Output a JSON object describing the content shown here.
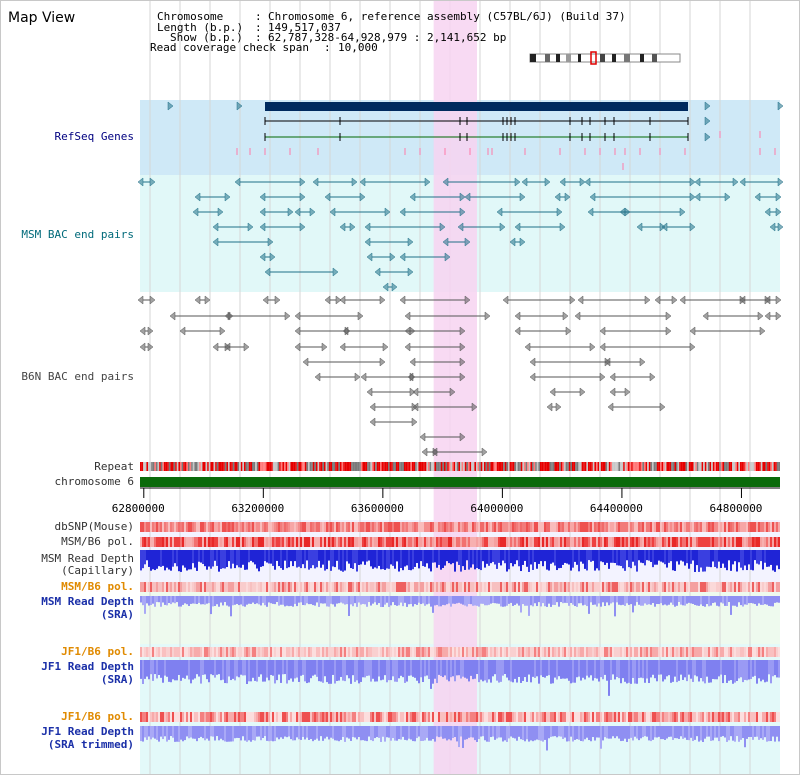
{
  "window": {
    "title": "Map View"
  },
  "info": {
    "chromosome_label": "Chromosome",
    "chromosome_value": "Chromosome 6, reference assembly (C57BL/6J) (Build 37)",
    "length_label": "Length (b.p.)",
    "length_value": "149,517,037",
    "show_label": "Show (b.p.)",
    "show_value": "62,787,328-64,928,979 : 2,141,652 bp",
    "coverage_label": "Read coverage check span",
    "coverage_value": "10,000"
  },
  "tracks": {
    "refseq": "RefSeq Genes",
    "msm_bac": "MSM BAC end pairs",
    "b6n_bac": "B6N BAC end pairs",
    "repeat": "Repeat",
    "chromosome": "chromosome 6",
    "dbsnp": "dbSNP(Mouse)",
    "msm_b6_pol_1": "MSM/B6 pol.",
    "msm_depth_cap_1": "MSM Read Depth",
    "msm_depth_cap_2": "(Capillary)",
    "msm_b6_pol_2": "MSM/B6 pol.",
    "msm_depth_sra_1": "MSM Read Depth",
    "msm_depth_sra_2": "(SRA)",
    "jf1_b6_pol_1": "JF1/B6 pol.",
    "jf1_depth_sra_1": "JF1 Read Depth",
    "jf1_depth_sra_2": "(SRA)",
    "jf1_b6_pol_2": "JF1/B6 pol.",
    "jf1_depth_trim_1": "JF1 Read Depth",
    "jf1_depth_trim_2": "(SRA trimmed)"
  },
  "axis": {
    "ticks": [
      "62800000",
      "63200000",
      "63600000",
      "64000000",
      "64400000",
      "64800000"
    ],
    "range_bp": [
      62787328,
      64928979
    ]
  },
  "highlight_bp": [
    63770000,
    63915000
  ],
  "colors": {
    "refseq_bg": "#cfe9f7",
    "msm_bac_bg": "#e1f8f8",
    "highlight": "#f7d3f1",
    "gene_bar": "#002a5e",
    "gene_line": "#000000",
    "msm_bac_line": "#1f6f87",
    "b6n_bac_line": "#555555",
    "chromosome_bar": "#0a6a0a",
    "depth_blue": "#1f24d6",
    "depth_light": "#7f80f0",
    "pol_red": "#e80000",
    "pol_pink": "#f4a0a0",
    "pol_orange": "#f2b8a0"
  }
}
